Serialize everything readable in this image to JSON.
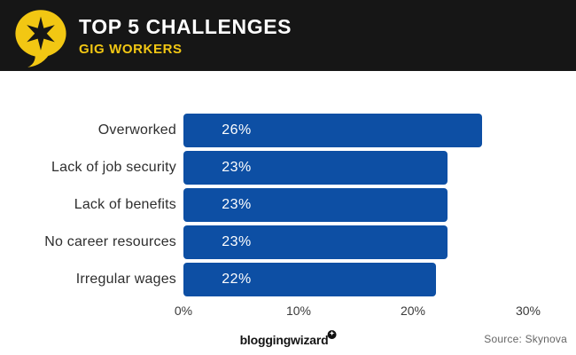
{
  "header": {
    "title": "TOP 5 CHALLENGES",
    "subtitle": "GIG WORKERS",
    "logo_icon": "speech-bubble-burst-icon",
    "background_color": "#161616",
    "accent_yellow": "#f2c713"
  },
  "chart_data": {
    "type": "bar",
    "orientation": "horizontal",
    "title": "TOP 5 CHALLENGES",
    "subtitle": "GIG WORKERS",
    "categories": [
      "Overworked",
      "Lack of job security",
      "Lack of benefits",
      "No career resources",
      "Irregular wages"
    ],
    "values": [
      26,
      23,
      23,
      23,
      22
    ],
    "value_labels": [
      "26%",
      "23%",
      "23%",
      "23%",
      "22%"
    ],
    "x_tick_labels": [
      "0%",
      "10%",
      "20%",
      "30%"
    ],
    "x_tick_values": [
      0,
      10,
      20,
      30
    ],
    "xlim": [
      0,
      30
    ],
    "bar_color": "#0d4fa4",
    "value_label_color": "#ffffff",
    "grid": false,
    "legend": false
  },
  "footer": {
    "brand": "bloggingwizard",
    "brand_badge_glyph": "✦",
    "source": "Source: Skynova"
  }
}
